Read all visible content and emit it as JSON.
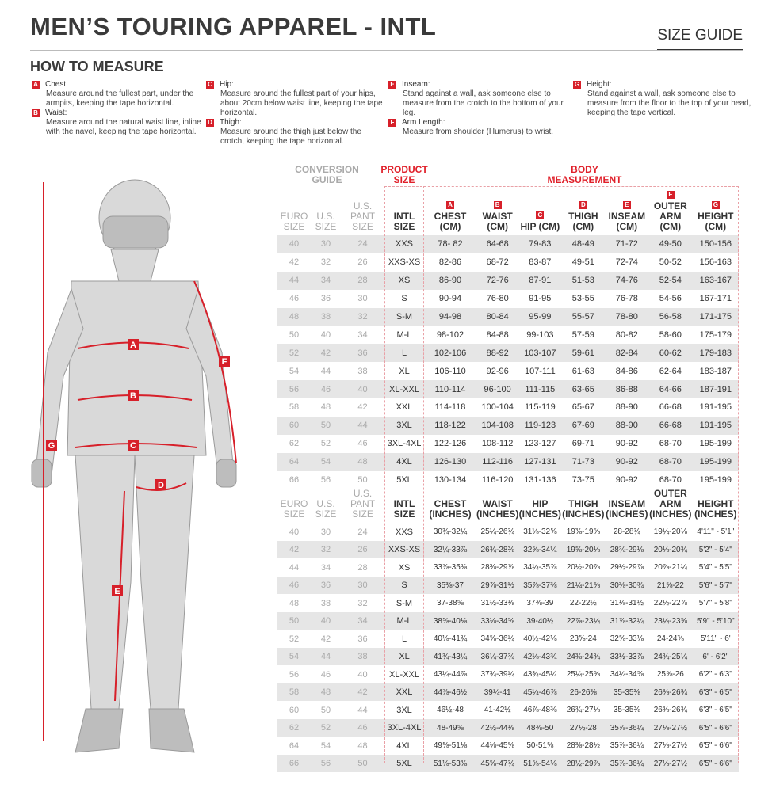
{
  "header": {
    "title": "MEN’S TOURING APPAREL - INTL",
    "size_guide": "SIZE GUIDE"
  },
  "how_to_measure": {
    "title": "HOW TO MEASURE",
    "items": [
      {
        "letter": "A",
        "title": "Chest:",
        "desc": "Measure around the fullest part, under the armpits, keeping the tape horizontal."
      },
      {
        "letter": "B",
        "title": "Waist:",
        "desc": "Measure around the natural waist line, inline with the navel, keeping the tape horizontal."
      },
      {
        "letter": "C",
        "title": "Hip:",
        "desc": "Measure around the fullest part of your hips, about 20cm below waist line, keeping the tape horizontal."
      },
      {
        "letter": "D",
        "title": "Thigh:",
        "desc": "Measure around the thigh just below the crotch, keeping the tape horizontal."
      },
      {
        "letter": "E",
        "title": "Inseam:",
        "desc": "Stand against a wall, ask someone else to measure from the crotch to the bottom of your leg."
      },
      {
        "letter": "F",
        "title": "Arm Length:",
        "desc": "Measure from shoulder (Humerus) to wrist."
      },
      {
        "letter": "G",
        "title": "Height:",
        "desc": "Stand against a wall, ask someone else to measure from the floor to the top of your head, keeping the tape vertical."
      }
    ]
  },
  "colors": {
    "accent": "#e0202a",
    "row_alt": "#e6e6e6"
  },
  "table": {
    "group_conversion": "CONVERSION GUIDE",
    "group_product": "PRODUCT SIZE",
    "group_body": "BODY MEASUREMENT",
    "letters": [
      "A",
      "B",
      "C",
      "D",
      "E",
      "F",
      "G"
    ],
    "cm_headers": [
      "EURO SIZE",
      "U.S. SIZE",
      "U.S. PANT SIZE",
      "INTL SIZE",
      "CHEST (CM)",
      "WAIST (CM)",
      "HIP (CM)",
      "THIGH (CM)",
      "INSEAM (CM)",
      "OUTER ARM (CM)",
      "HEIGHT (CM)"
    ],
    "cm_rows": [
      [
        "40",
        "30",
        "24",
        "XXS",
        "78- 82",
        "64-68",
        "79-83",
        "48-49",
        "71-72",
        "49-50",
        "150-156"
      ],
      [
        "42",
        "32",
        "26",
        "XXS-XS",
        "82-86",
        "68-72",
        "83-87",
        "49-51",
        "72-74",
        "50-52",
        "156-163"
      ],
      [
        "44",
        "34",
        "28",
        "XS",
        "86-90",
        "72-76",
        "87-91",
        "51-53",
        "74-76",
        "52-54",
        "163-167"
      ],
      [
        "46",
        "36",
        "30",
        "S",
        "90-94",
        "76-80",
        "91-95",
        "53-55",
        "76-78",
        "54-56",
        "167-171"
      ],
      [
        "48",
        "38",
        "32",
        "S-M",
        "94-98",
        "80-84",
        "95-99",
        "55-57",
        "78-80",
        "56-58",
        "171-175"
      ],
      [
        "50",
        "40",
        "34",
        "M-L",
        "98-102",
        "84-88",
        "99-103",
        "57-59",
        "80-82",
        "58-60",
        "175-179"
      ],
      [
        "52",
        "42",
        "36",
        "L",
        "102-106",
        "88-92",
        "103-107",
        "59-61",
        "82-84",
        "60-62",
        "179-183"
      ],
      [
        "54",
        "44",
        "38",
        "XL",
        "106-110",
        "92-96",
        "107-111",
        "61-63",
        "84-86",
        "62-64",
        "183-187"
      ],
      [
        "56",
        "46",
        "40",
        "XL-XXL",
        "110-114",
        "96-100",
        "111-115",
        "63-65",
        "86-88",
        "64-66",
        "187-191"
      ],
      [
        "58",
        "48",
        "42",
        "XXL",
        "114-118",
        "100-104",
        "115-119",
        "65-67",
        "88-90",
        "66-68",
        "191-195"
      ],
      [
        "60",
        "50",
        "44",
        "3XL",
        "118-122",
        "104-108",
        "119-123",
        "67-69",
        "88-90",
        "66-68",
        "191-195"
      ],
      [
        "62",
        "52",
        "46",
        "3XL-4XL",
        "122-126",
        "108-112",
        "123-127",
        "69-71",
        "90-92",
        "68-70",
        "195-199"
      ],
      [
        "64",
        "54",
        "48",
        "4XL",
        "126-130",
        "112-116",
        "127-131",
        "71-73",
        "90-92",
        "68-70",
        "195-199"
      ],
      [
        "66",
        "56",
        "50",
        "5XL",
        "130-134",
        "116-120",
        "131-136",
        "73-75",
        "90-92",
        "68-70",
        "195-199"
      ]
    ],
    "in_headers": [
      "EURO SIZE",
      "U.S. SIZE",
      "U.S. PANT SIZE",
      "INTL SIZE",
      "CHEST (INCHES)",
      "WAIST (INCHES)",
      "HIP (INCHES)",
      "THIGH (INCHES)",
      "INSEAM (INCHES)",
      "OUTER ARM (INCHES)",
      "HEIGHT (INCHES)"
    ],
    "in_rows": [
      [
        "40",
        "30",
        "24",
        "XXS",
        "30¾-32¼",
        "25¼-26¾",
        "31⅛-32⅝",
        "19⅜-19⅝",
        "28-28¾",
        "19¼-20⅛",
        "4'11\" - 5'1\""
      ],
      [
        "42",
        "32",
        "26",
        "XXS-XS",
        "32¼-33⅞",
        "26¾-28⅜",
        "32⅝-34¼",
        "19⅝-20⅛",
        "28¾-29⅛",
        "20⅛-20¾",
        "5'2\" - 5'4\""
      ],
      [
        "44",
        "34",
        "28",
        "XS",
        "33⅞-35⅜",
        "28⅜-29⅞",
        "34¼-35⅞",
        "20½-20⅞",
        "29½-29⅞",
        "20⅞-21¼",
        "5'4\" - 5'5\""
      ],
      [
        "46",
        "36",
        "30",
        "S",
        "35⅜-37",
        "29⅞-31½",
        "35⅞-37⅜",
        "21¼-21⅝",
        "30⅜-30¾",
        "21⅝-22",
        "5'6\" - 5'7\""
      ],
      [
        "48",
        "38",
        "32",
        "S-M",
        "37-38⅝",
        "31½-33⅛",
        "37⅜-39",
        "22-22½",
        "31⅛-31½",
        "22½-22⅞",
        "5'7\" - 5'8\""
      ],
      [
        "50",
        "40",
        "34",
        "M-L",
        "38⅝-40⅛",
        "33⅛-34⅝",
        "39-40½",
        "22⅞-23¼",
        "31⅞-32¼",
        "23¼-23⅝",
        "5'9\" - 5'10\""
      ],
      [
        "52",
        "42",
        "36",
        "L",
        "40⅛-41¾",
        "34⅝-36¼",
        "40½-42⅛",
        "23⅝-24",
        "32⅝-33⅛",
        "24-24⅜",
        "5'11\" - 6'"
      ],
      [
        "54",
        "44",
        "38",
        "XL",
        "41¾-43¼",
        "36¼-37¾",
        "42⅛-43¾",
        "24⅜-24¾",
        "33½-33⅞",
        "24¾-25¼",
        "6' - 6'2\""
      ],
      [
        "56",
        "46",
        "40",
        "XL-XXL",
        "43¼-44⅞",
        "37¾-39¼",
        "43¾-45¼",
        "25¼-25⅝",
        "34¼-34⅝",
        "25⅝-26",
        "6'2\" - 6'3\""
      ],
      [
        "58",
        "48",
        "42",
        "XXL",
        "44⅞-46½",
        "39¼-41",
        "45¼-46⅞",
        "26-26⅜",
        "35-35⅜",
        "26⅜-26¾",
        "6'3\" - 6'5\""
      ],
      [
        "60",
        "50",
        "44",
        "3XL",
        "46½-48",
        "41-42½",
        "46⅞-48⅜",
        "26¾-27⅛",
        "35-35⅜",
        "26⅜-26¾",
        "6'3\" - 6'5\""
      ],
      [
        "62",
        "52",
        "46",
        "3XL-4XL",
        "48-49⅝",
        "42½-44⅛",
        "48⅜-50",
        "27½-28",
        "35⅞-36¼",
        "27⅛-27½",
        "6'5\" - 6'6\""
      ],
      [
        "64",
        "54",
        "48",
        "4XL",
        "49⅝-51⅛",
        "44⅛-45⅝",
        "50-51⅝",
        "28⅜-28½",
        "35⅞-36¼",
        "27⅛-27½",
        "6'5\" - 6'6\""
      ],
      [
        "66",
        "56",
        "50",
        "5XL",
        "51⅛-53⅜",
        "45⅝-47¾",
        "51⅝-54⅛",
        "28½-29⅞",
        "35⅞-36¼",
        "27⅛-27½",
        "6'5\" - 6'6\""
      ]
    ]
  }
}
